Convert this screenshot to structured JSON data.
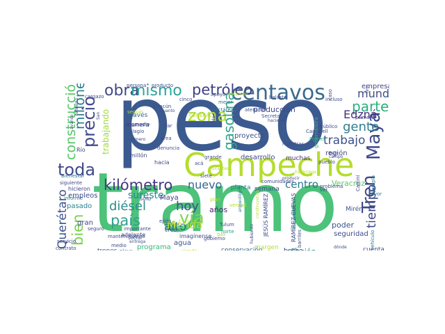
{
  "cloud": {
    "words": [
      {
        "text": "peso",
        "color": "#3b5a8f"
      },
      {
        "text": "tramo",
        "color": "#4cc27a"
      },
      {
        "text": "Campeche",
        "color": "#b4dd2c"
      },
      {
        "text": "centavos",
        "color": "#3a6b8e"
      },
      {
        "text": "Tren",
        "color": "#3e4a89"
      },
      {
        "text": "Maya",
        "color": "#3e4a89"
      },
      {
        "text": "precio",
        "color": "#444a8a"
      },
      {
        "text": "obra",
        "color": "#404986"
      },
      {
        "text": "mismo",
        "color": "#2aa59a"
      },
      {
        "text": "petróleo",
        "color": "#3d3f85"
      },
      {
        "text": "zona",
        "color": "#b0dc32"
      },
      {
        "text": "toda",
        "color": "#3e4a89"
      },
      {
        "text": "vía",
        "color": "#7fd34e"
      },
      {
        "text": "país",
        "color": "#31a08e"
      },
      {
        "text": "kilómetro",
        "color": "#453781"
      },
      {
        "text": "gasolina",
        "color": "#30a58a"
      },
      {
        "text": "parte",
        "color": "#2ab07f"
      },
      {
        "text": "mundo",
        "color": "#3f4c8a"
      },
      {
        "text": "gente",
        "color": "#2e7f8e"
      },
      {
        "text": "Edzná",
        "color": "#44307d"
      },
      {
        "text": "trabajo",
        "color": "#3b528b"
      },
      {
        "text": "tiempo",
        "color": "#3f4689"
      },
      {
        "text": "millones",
        "color": "#287d8e"
      },
      {
        "text": "construcción",
        "color": "#56c667"
      },
      {
        "text": "bien",
        "color": "#7ad151"
      },
      {
        "text": "Querétaro",
        "color": "#3b528b"
      },
      {
        "text": "diésel",
        "color": "#2c8c8c"
      },
      {
        "text": "hoy",
        "color": "#3a538b"
      },
      {
        "text": "alto",
        "color": "#2d708e"
      },
      {
        "text": "sureste",
        "color": "#24868e"
      },
      {
        "text": "nuevo",
        "color": "#31688e"
      },
      {
        "text": "centro",
        "color": "#2a788e"
      },
      {
        "text": "trabajando",
        "color": "#a0da39"
      },
      {
        "text": "producción",
        "color": "#404688"
      },
      {
        "text": "desarrollo",
        "color": "#3e4a89"
      },
      {
        "text": "proyecto",
        "color": "#3c508b"
      },
      {
        "text": "empresa",
        "color": "#414487"
      },
      {
        "text": "región",
        "color": "#3e4989"
      },
      {
        "text": "inflación",
        "color": "#26828e"
      },
      {
        "text": "conservación",
        "color": "#33638d"
      },
      {
        "text": "Veracruz",
        "color": "#5ec962"
      },
      {
        "text": "poder",
        "color": "#3b528b"
      },
      {
        "text": "seguridad",
        "color": "#3e4989"
      },
      {
        "text": "hecho",
        "color": "#424086"
      },
      {
        "text": "cuenta",
        "color": "#3e4a89"
      },
      {
        "text": "Mérida",
        "color": "#c0df25"
      },
      {
        "text": "años",
        "color": "#481f70"
      },
      {
        "text": "agua",
        "color": "#3b528b"
      },
      {
        "text": "Maya",
        "color": "#433e85"
      },
      {
        "text": "hacia",
        "color": "#3f4c8a"
      },
      {
        "text": "gran",
        "color": "#414487"
      },
      {
        "text": "pasado",
        "color": "#25858e"
      },
      {
        "text": "empleos",
        "color": "#3e4a89"
      },
      {
        "text": "programa",
        "color": "#35b779"
      },
      {
        "text": "trenes",
        "color": "#3a538b"
      },
      {
        "text": "margen",
        "color": "#b5de2b"
      },
      {
        "text": "planta",
        "color": "#2a788e"
      },
      {
        "text": "semana",
        "color": "#3b528b"
      },
      {
        "text": "muchas",
        "color": "#472d7b"
      },
      {
        "text": "través",
        "color": "#31688e"
      },
      {
        "text": "manera",
        "color": "#3e4a89"
      },
      {
        "text": "millón",
        "color": "#3f4788"
      },
      {
        "text": "denuncia",
        "color": "#3b518b"
      },
      {
        "text": "hectáreas",
        "color": "#2c728e"
      },
      {
        "text": "atención",
        "color": "#3a548c"
      },
      {
        "text": "cinco",
        "color": "#3e4a89"
      },
      {
        "text": "apoyo",
        "color": "#3b528b"
      },
      {
        "text": "mejor",
        "color": "#2a788e"
      },
      {
        "text": "Nacional",
        "color": "#a5db36"
      },
      {
        "text": "balasto",
        "color": "#3f4c8a"
      },
      {
        "text": "caso",
        "color": "#3e4a89"
      },
      {
        "text": "público",
        "color": "#3f4788"
      },
      {
        "text": "pueblo",
        "color": "#3f4788"
      },
      {
        "text": "problema",
        "color": "#3e4989"
      },
      {
        "text": "comunidades",
        "color": "#3f4788"
      },
      {
        "text": "Tulum",
        "color": "#3e4a89"
      },
      {
        "text": "norte",
        "color": "#1f9e89"
      },
      {
        "text": "gas",
        "color": "#a8db34"
      },
      {
        "text": "Mirén",
        "color": "#3b528b"
      },
      {
        "text": "JESÚS RAMÍREZ",
        "color": "#3e4a89"
      },
      {
        "text": "RAMÍREZ CUEVAS",
        "color": "#3e4a89"
      },
      {
        "text": "barriles",
        "color": "#3a548c"
      },
      {
        "text": "Cantarell",
        "color": "#3e4989"
      },
      {
        "text": "Pemex",
        "color": "#29af7f"
      },
      {
        "text": "gobernadora",
        "color": "#35b779"
      },
      {
        "text": "Secretaría",
        "color": "#3b528b"
      },
      {
        "text": "haciendo",
        "color": "#3e4a89"
      },
      {
        "text": "primero",
        "color": "#414487"
      },
      {
        "text": "incluso",
        "color": "#3e4a89"
      },
      {
        "text": "Cancún",
        "color": "#3e4a89"
      },
      {
        "text": "cuanto",
        "color": "#3b528b"
      },
      {
        "text": "promedio",
        "color": "#3e4a89"
      },
      {
        "text": "plagio",
        "color": "#3b528b"
      },
      {
        "text": "número",
        "color": "#3f4788"
      },
      {
        "text": "área",
        "color": "#3e4a89"
      },
      {
        "text": "dar",
        "color": "#3e4a89"
      },
      {
        "text": "GENERAL",
        "color": "#b5de2b"
      },
      {
        "text": "seguir",
        "color": "#b5de2b"
      },
      {
        "text": "persona",
        "color": "#3e4a89"
      },
      {
        "text": "producto",
        "color": "#3b528b"
      },
      {
        "text": "cargazo",
        "color": "#3e4a89"
      },
      {
        "text": "Río",
        "color": "#414487"
      },
      {
        "text": "informe",
        "color": "#2a788e"
      },
      {
        "text": "siguiente",
        "color": "#3e4a89"
      },
      {
        "text": "Bienestar",
        "color": "#2a788e"
      },
      {
        "text": "hicieron",
        "color": "#3f4788"
      },
      {
        "text": "sólo",
        "color": "#3e4a89"
      },
      {
        "text": "mantenimiento",
        "color": "#3e4a89"
      },
      {
        "text": "servicio",
        "color": "#414487"
      },
      {
        "text": "contrato",
        "color": "#3e4a89"
      },
      {
        "text": "reserva",
        "color": "#b5de2b"
      },
      {
        "text": "seguro",
        "color": "#3f4788"
      },
      {
        "text": "medio",
        "color": "#3e4a89"
      },
      {
        "text": "social",
        "color": "#3e4a89"
      },
      {
        "text": "adelante",
        "color": "#3f4788"
      },
      {
        "text": "importante",
        "color": "#3e4a89"
      },
      {
        "text": "entrega",
        "color": "#3b528b"
      },
      {
        "text": "playa",
        "color": "#2a788e"
      },
      {
        "text": "creo",
        "color": "#3b528b"
      },
      {
        "text": "ejido",
        "color": "#3e4a89"
      },
      {
        "text": "imagínense",
        "color": "#3e4a89"
      },
      {
        "text": "encuentra",
        "color": "#3e4a89"
      },
      {
        "text": "viendo",
        "color": "#b5de2b"
      },
      {
        "text": "gobierno",
        "color": "#3e4a89"
      },
      {
        "text": "visitantes",
        "color": "#b5de2b"
      },
      {
        "text": "acá",
        "color": "#3e4a89"
      },
      {
        "text": "siete",
        "color": "#3e4a89"
      },
      {
        "text": "grande",
        "color": "#3f4788"
      },
      {
        "text": "plan",
        "color": "#b5de2b"
      },
      {
        "text": "verdad",
        "color": "#b5de2b"
      },
      {
        "text": "ver",
        "color": "#3e4a89"
      },
      {
        "text": "ejemplo",
        "color": "#2a788e"
      },
      {
        "text": "vehículo",
        "color": "#2a788e"
      },
      {
        "text": "favor",
        "color": "#2a788e"
      },
      {
        "text": "Calkiní",
        "color": "#3e4a89"
      },
      {
        "text": "bajo",
        "color": "#3e4a89"
      },
      {
        "text": "campo",
        "color": "#3e4a89"
      },
      {
        "text": "ir",
        "color": "#3e4a89"
      },
      {
        "text": "hubiendo",
        "color": "#3e4a89"
      },
      {
        "text": "pueda",
        "color": "#3e4a89"
      },
      {
        "text": "Escárcega",
        "color": "#b5de2b"
      },
      {
        "text": "mientras",
        "color": "#3e4a89"
      },
      {
        "text": "avance",
        "color": "#3e4a89"
      },
      {
        "text": "refinería",
        "color": "#3e4a89"
      },
      {
        "text": "San",
        "color": "#3e4a89"
      },
      {
        "text": "ida",
        "color": "#3e4a89"
      },
      {
        "text": "producir",
        "color": "#3e4a89"
      },
      {
        "text": "arqueológico",
        "color": "#2a788e"
      },
      {
        "text": "económico",
        "color": "#2a788e"
      },
      {
        "text": "construyendo",
        "color": "#b5de2b"
      },
      {
        "text": "tiro",
        "color": "#3e4a89"
      },
      {
        "text": "dónde",
        "color": "#3e4a89"
      }
    ]
  }
}
